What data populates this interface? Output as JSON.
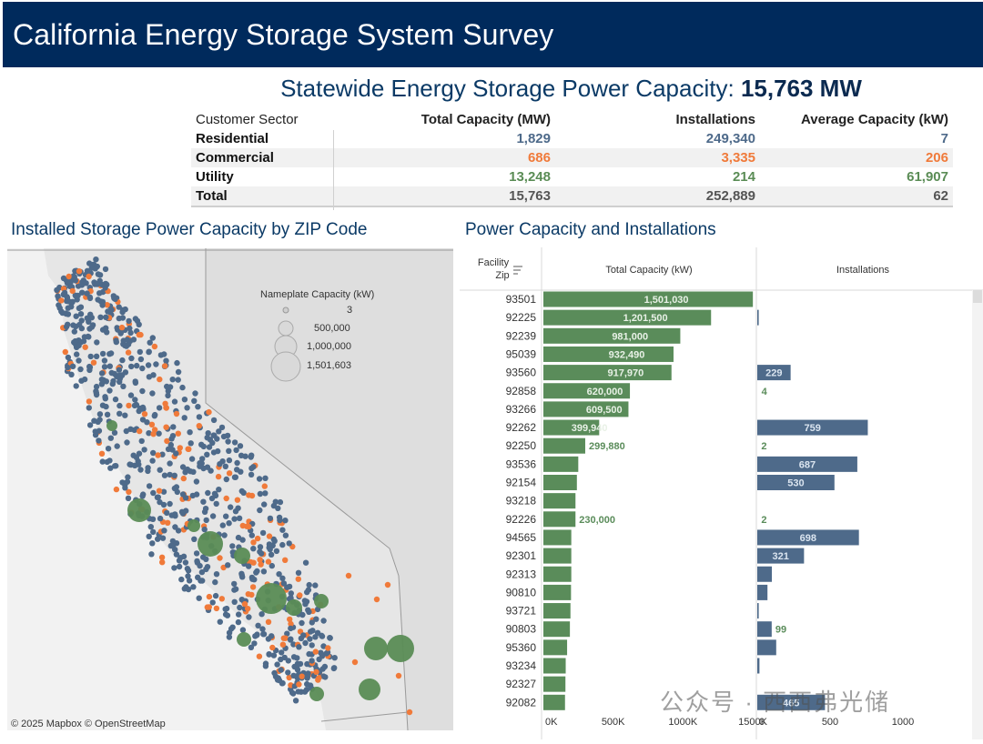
{
  "header": {
    "title": "California Energy Storage System Survey"
  },
  "headline": {
    "label": "Statewide Energy Storage Power Capacity:",
    "value": "15,763 MW"
  },
  "summary": {
    "columns": [
      "Customer Sector",
      "Total Capacity (MW)",
      "Installations",
      "Average Capacity (kW)"
    ],
    "rows": [
      {
        "sector": "Residential",
        "capacity": "1,829",
        "installs": "249,340",
        "avg": "7"
      },
      {
        "sector": "Commercial",
        "capacity": "686",
        "installs": "3,335",
        "avg": "206"
      },
      {
        "sector": "Utility",
        "capacity": "13,248",
        "installs": "214",
        "avg": "61,907"
      },
      {
        "sector": "Total",
        "capacity": "15,763",
        "installs": "252,889",
        "avg": "62"
      }
    ]
  },
  "map": {
    "title": "Installed Storage Power Capacity by ZIP Code",
    "legend_title": "Nameplate Capacity (kW)",
    "legend_items": [
      "3",
      "500,000",
      "1,000,000",
      "1,501,603"
    ],
    "attribution": "© 2025 Mapbox  © OpenStreetMap",
    "colors": {
      "residential": "#4e6a8a",
      "commercial": "#f07a3a",
      "utility": "#5a8c55"
    }
  },
  "watermark": "公众号 · 西西弗光储",
  "chart_data": {
    "type": "bar",
    "title": "Power Capacity and Installations",
    "row_header": "Facility Zip",
    "categories": [
      "93501",
      "92225",
      "92239",
      "95039",
      "93560",
      "92858",
      "93266",
      "92262",
      "92250",
      "93536",
      "92154",
      "93218",
      "92226",
      "94565",
      "92301",
      "92313",
      "90810",
      "93721",
      "90803",
      "95360",
      "93234",
      "92327",
      "92082"
    ],
    "series": [
      {
        "name": "Total Capacity (kW)",
        "color": "#5a8c5a",
        "values": [
          1501030,
          1201500,
          981000,
          932490,
          917970,
          620000,
          609500,
          399940,
          299880,
          250000,
          240000,
          230000,
          230000,
          200000,
          200000,
          200000,
          198000,
          194000,
          190000,
          170000,
          160000,
          158000,
          155000
        ],
        "labels": [
          "1,501,030",
          "1,201,500",
          "981,000",
          "932,490",
          "917,970",
          "620,000",
          "609,500",
          "399,940",
          "299,880",
          "",
          "",
          "",
          "230,000",
          "",
          "",
          "",
          "",
          "",
          "",
          "",
          "",
          "",
          ""
        ],
        "ticks": [
          "0K",
          "500K",
          "1000K",
          "1500K"
        ],
        "xlim": [
          0,
          1500000
        ]
      },
      {
        "name": "Installations",
        "color": "#4e6a8a",
        "values": [
          4,
          10,
          1,
          1,
          229,
          4,
          1,
          759,
          2,
          687,
          530,
          0,
          2,
          698,
          321,
          100,
          70,
          10,
          99,
          130,
          15,
          1,
          465
        ],
        "labels": [
          "",
          "",
          "",
          "",
          "229",
          "4",
          "",
          "759",
          "2",
          "687",
          "530",
          "",
          "2",
          "698",
          "321",
          "",
          "",
          "",
          "99",
          "",
          "",
          "",
          "465"
        ],
        "ticks": [
          "0",
          "500",
          "1000"
        ],
        "xlim": [
          0,
          1200
        ]
      }
    ]
  }
}
